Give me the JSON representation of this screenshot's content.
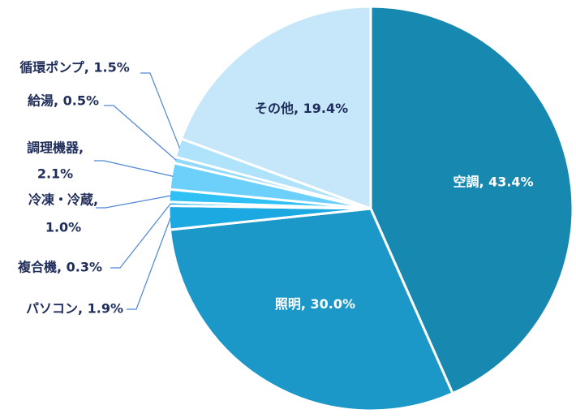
{
  "chart_data": {
    "type": "pie",
    "title": "",
    "start_angle_deg": 0,
    "direction": "clockwise",
    "slices": [
      {
        "label": "空調, 43.4%",
        "name": "空調",
        "value": 43.4,
        "color": "#1788b0",
        "text_color": "#ffffff",
        "placement": "inside"
      },
      {
        "label": "照明, 30.0%",
        "name": "照明",
        "value": 30.0,
        "color": "#1b98c8",
        "text_color": "#ffffff",
        "placement": "inside"
      },
      {
        "label": "パソコン, 1.9%",
        "name": "パソコン",
        "value": 1.9,
        "color": "#1ca9e2",
        "text_color": "#1f2d5a",
        "placement": "outside"
      },
      {
        "label": "複合機, 0.3%",
        "name": "複合機",
        "value": 0.3,
        "color": "#2ab4ee",
        "text_color": "#1f2d5a",
        "placement": "outside"
      },
      {
        "label": "冷凍・冷蔵, 1.0%",
        "lines": [
          "冷凍・冷蔵,",
          "1.0%"
        ],
        "name": "冷凍・冷蔵",
        "value": 1.0,
        "color": "#2fc0f6",
        "text_color": "#1f2d5a",
        "placement": "outside"
      },
      {
        "label": "調理機器, 2.1%",
        "lines": [
          "調理機器,",
          "2.1%"
        ],
        "name": "調理機器",
        "value": 2.1,
        "color": "#6dd0fb",
        "text_color": "#1f2d5a",
        "placement": "outside"
      },
      {
        "label": "給湯, 0.5%",
        "name": "給湯",
        "value": 0.5,
        "color": "#90dbfa",
        "text_color": "#1f2d5a",
        "placement": "outside"
      },
      {
        "label": "循環ポンプ, 1.5%",
        "name": "循環ポンプ",
        "value": 1.5,
        "color": "#aee3fb",
        "text_color": "#1f2d5a",
        "placement": "outside"
      },
      {
        "label": "その他, 19.4%",
        "name": "その他",
        "value": 19.4,
        "color": "#c6e6fa",
        "text_color": "#1f2d5a",
        "placement": "inside"
      }
    ],
    "legend": "none",
    "leader_line_color": "#4f86d6"
  }
}
